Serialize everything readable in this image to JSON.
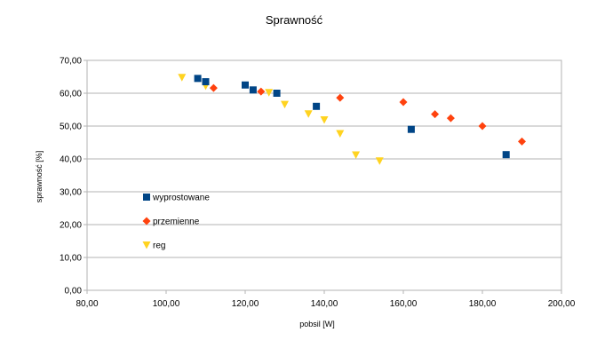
{
  "chart_data": {
    "type": "scatter",
    "title": "Sprawność",
    "xlabel": "pobsil [W]",
    "ylabel": "sprawność [%]",
    "xlim": [
      80,
      200
    ],
    "ylim": [
      0,
      70
    ],
    "x_ticks": [
      "80,00",
      "100,00",
      "120,00",
      "140,00",
      "160,00",
      "180,00",
      "200,00"
    ],
    "y_ticks": [
      "0,00",
      "10,00",
      "20,00",
      "30,00",
      "40,00",
      "50,00",
      "60,00",
      "70,00"
    ],
    "grid": "horizontal",
    "legend_position": "left, inside plot",
    "series": [
      {
        "name": "wyprostowane",
        "color": "#004586",
        "marker": "square",
        "points": [
          [
            108,
            64.5
          ],
          [
            110,
            63.5
          ],
          [
            120,
            62.5
          ],
          [
            122,
            61.0
          ],
          [
            128,
            60.0
          ],
          [
            138,
            56.0
          ],
          [
            162,
            49.0
          ],
          [
            186,
            41.3
          ]
        ]
      },
      {
        "name": "przemienne",
        "color": "#FF420E",
        "marker": "diamond",
        "points": [
          [
            112,
            61.6
          ],
          [
            124,
            60.5
          ],
          [
            144,
            58.6
          ],
          [
            160,
            57.3
          ],
          [
            168,
            53.6
          ],
          [
            172,
            52.4
          ],
          [
            180,
            50.0
          ],
          [
            190,
            45.3
          ]
        ]
      },
      {
        "name": "reg",
        "color": "#FFD320",
        "marker": "triangle-down",
        "points": [
          [
            104,
            64.8
          ],
          [
            110,
            62.2
          ],
          [
            126,
            60.2
          ],
          [
            130,
            56.6
          ],
          [
            136,
            53.7
          ],
          [
            140,
            51.9
          ],
          [
            144,
            47.7
          ],
          [
            148,
            41.2
          ],
          [
            154,
            39.4
          ]
        ]
      }
    ]
  }
}
